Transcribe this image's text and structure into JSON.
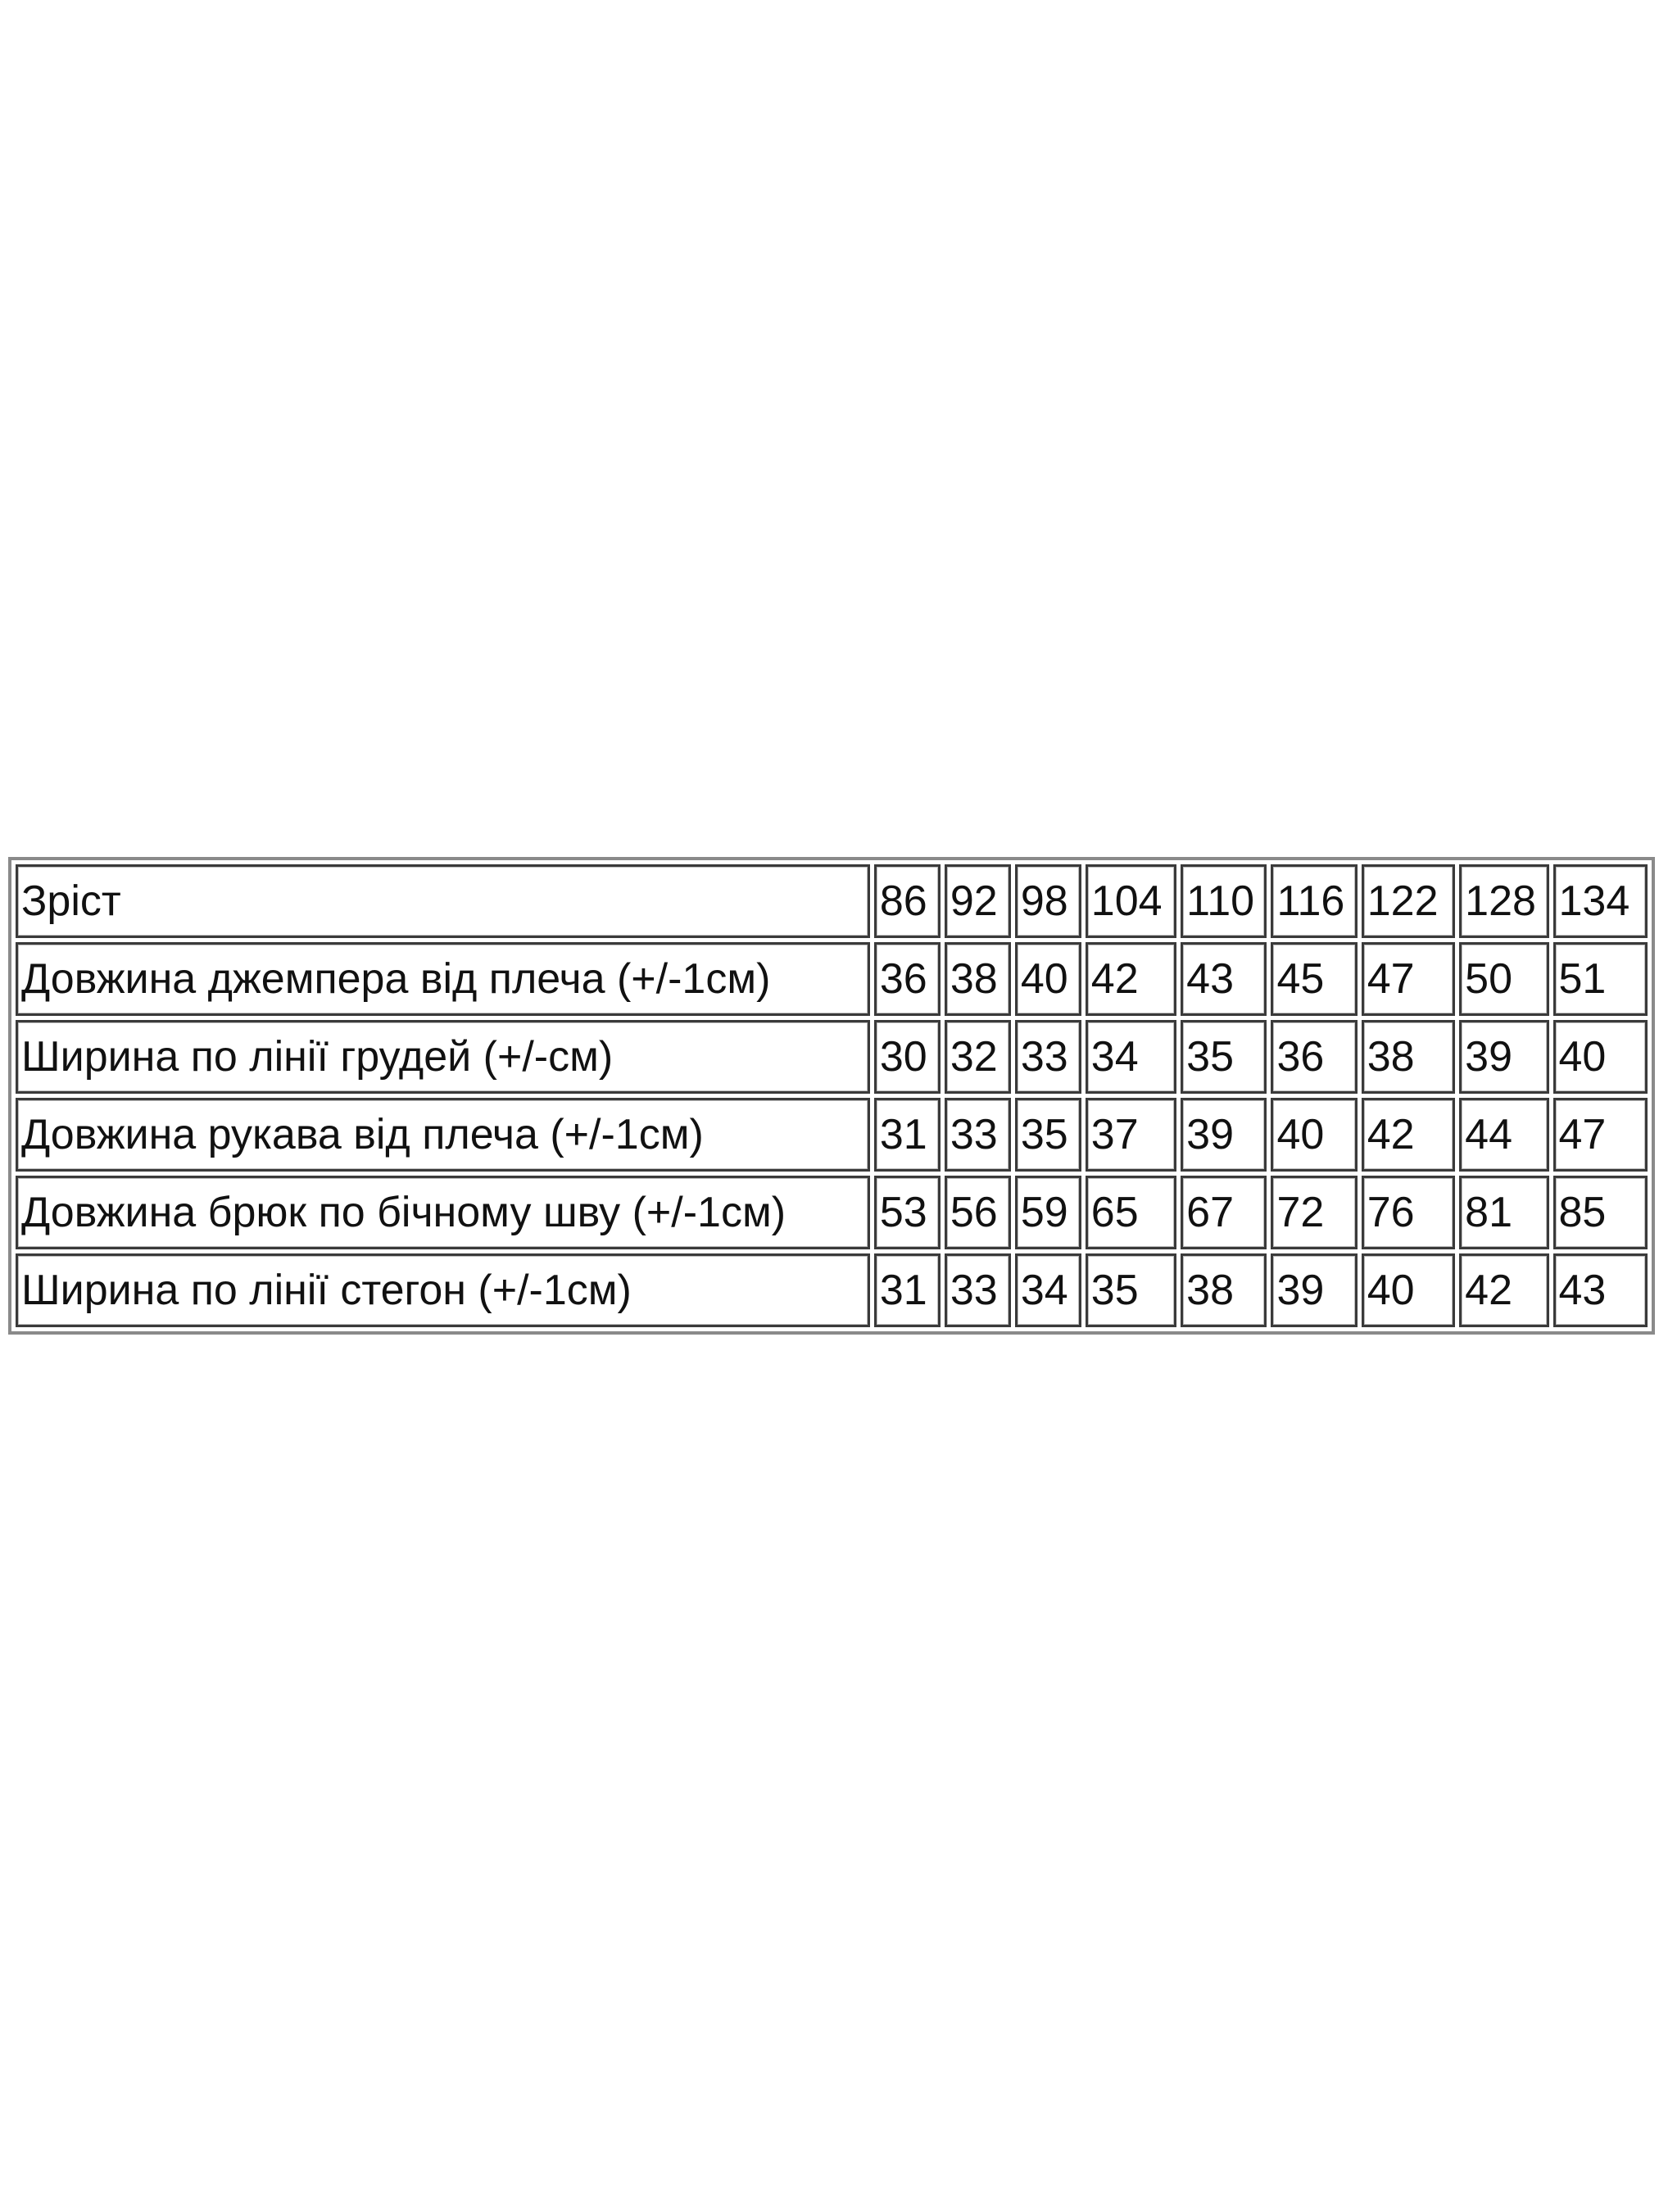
{
  "table": {
    "header": {
      "label": "Зріст",
      "values": [
        "86",
        "92",
        "98",
        "104",
        "110",
        "116",
        "122",
        "128",
        "134"
      ]
    },
    "rows": [
      {
        "label": "Довжина джемпера від плеча (+/-1см)",
        "values": [
          "36",
          "38",
          "40",
          "42",
          "43",
          "45",
          "47",
          "50",
          "51"
        ]
      },
      {
        "label": "Ширина по лінії грудей (+/-см)",
        "values": [
          "30",
          "32",
          "33",
          "34",
          "35",
          "36",
          "38",
          "39",
          "40"
        ]
      },
      {
        "label": "Довжина рукава від плеча (+/-1см)",
        "values": [
          "31",
          "33",
          "35",
          "37",
          "39",
          "40",
          "42",
          "44",
          "47"
        ]
      },
      {
        "label": "Довжина брюк по бічному шву (+/-1см)",
        "values": [
          "53",
          "56",
          "59",
          "65",
          "67",
          "72",
          "76",
          "81",
          "85"
        ]
      },
      {
        "label": "Ширина по лінії стегон (+/-1см)",
        "values": [
          "31",
          "33",
          "34",
          "35",
          "38",
          "39",
          "40",
          "42",
          "43"
        ]
      }
    ]
  }
}
